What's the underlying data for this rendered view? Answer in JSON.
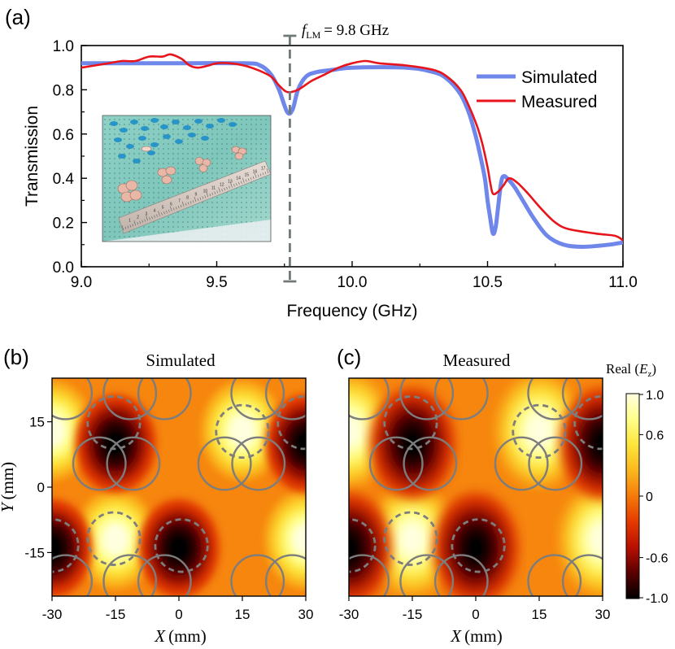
{
  "panel_labels": {
    "a": "(a)",
    "b": "(b)",
    "c": "(c)"
  },
  "annotation": {
    "f_symbol": "f",
    "f_subscript": "LM",
    "f_value": "= 9.8 GHz",
    "frequency_ghz": 9.77
  },
  "colorbar": {
    "title_prefix": "Real (",
    "title_var": "E",
    "title_sub": "z",
    "title_suffix": ")",
    "ticks": [
      "1.0",
      "0.6",
      "0",
      "-0.6",
      "-1.0"
    ],
    "tick_values": [
      1.0,
      0.6,
      0,
      -0.6,
      -1.0
    ],
    "range": [
      -1.0,
      1.0
    ],
    "colormap": [
      "#000000",
      "#5a0000",
      "#b81000",
      "#e63a00",
      "#f57a0a",
      "#fbb81d",
      "#fde53a",
      "#ffff8a",
      "#ffffe0"
    ]
  },
  "inset_photo": {
    "ruler_numbers": [
      "1",
      "2",
      "3",
      "4",
      "5",
      "6",
      "7",
      "8",
      "9",
      "10",
      "11",
      "12",
      "13",
      "14",
      "15",
      "16",
      "17"
    ]
  },
  "chart_data": [
    {
      "type": "line",
      "title": "",
      "xlabel": "Frequency (GHz)",
      "ylabel": "Transmission",
      "xlim": [
        9.0,
        11.0
      ],
      "ylim": [
        0.0,
        1.0
      ],
      "xticks": [
        9.0,
        9.5,
        10.0,
        10.5,
        11.0
      ],
      "xtick_labels": [
        "9.0",
        "9.5",
        "10.0",
        "10.5",
        "11.0"
      ],
      "yticks": [
        0.0,
        0.2,
        0.4,
        0.6,
        0.8,
        1.0
      ],
      "ytick_labels": [
        "0.0",
        "0.2",
        "0.4",
        "0.6",
        "0.8",
        "1.0"
      ],
      "legend_position": "top-right",
      "series": [
        {
          "name": "Simulated",
          "color": "#6f86ea",
          "x": [
            9.0,
            9.3,
            9.6,
            9.66,
            9.7,
            9.73,
            9.76,
            9.78,
            9.8,
            9.83,
            9.87,
            9.93,
            10.0,
            10.2,
            10.3,
            10.35,
            10.4,
            10.43,
            10.45,
            10.47,
            10.49,
            10.5,
            10.51,
            10.52,
            10.53,
            10.54,
            10.55,
            10.56,
            10.58,
            10.6,
            10.63,
            10.67,
            10.72,
            10.78,
            10.85,
            10.95,
            11.0
          ],
          "values": [
            0.92,
            0.92,
            0.92,
            0.91,
            0.87,
            0.8,
            0.7,
            0.71,
            0.8,
            0.86,
            0.88,
            0.89,
            0.9,
            0.9,
            0.88,
            0.85,
            0.78,
            0.7,
            0.62,
            0.52,
            0.4,
            0.3,
            0.22,
            0.15,
            0.18,
            0.28,
            0.38,
            0.41,
            0.39,
            0.36,
            0.3,
            0.22,
            0.14,
            0.1,
            0.09,
            0.1,
            0.11
          ]
        },
        {
          "name": "Measured",
          "color": "#e8141c",
          "x": [
            9.0,
            9.05,
            9.1,
            9.15,
            9.2,
            9.25,
            9.3,
            9.33,
            9.37,
            9.4,
            9.43,
            9.47,
            9.5,
            9.55,
            9.6,
            9.65,
            9.7,
            9.73,
            9.76,
            9.8,
            9.85,
            9.9,
            9.95,
            10.0,
            10.05,
            10.1,
            10.2,
            10.3,
            10.35,
            10.4,
            10.43,
            10.46,
            10.48,
            10.5,
            10.51,
            10.52,
            10.54,
            10.56,
            10.58,
            10.61,
            10.65,
            10.7,
            10.75,
            10.8,
            10.9,
            10.97,
            11.0
          ],
          "values": [
            0.9,
            0.91,
            0.92,
            0.93,
            0.93,
            0.95,
            0.95,
            0.96,
            0.94,
            0.91,
            0.9,
            0.91,
            0.92,
            0.92,
            0.91,
            0.89,
            0.86,
            0.82,
            0.79,
            0.8,
            0.84,
            0.87,
            0.9,
            0.92,
            0.93,
            0.92,
            0.91,
            0.89,
            0.86,
            0.8,
            0.73,
            0.64,
            0.56,
            0.45,
            0.38,
            0.33,
            0.34,
            0.37,
            0.4,
            0.38,
            0.33,
            0.26,
            0.2,
            0.17,
            0.15,
            0.14,
            0.12
          ]
        }
      ]
    },
    {
      "type": "heatmap",
      "title": "Simulated",
      "xlabel_var": "X",
      "xlabel_unit": "(mm)",
      "ylabel_var": "Y",
      "ylabel_unit": "(mm)",
      "xlim": [
        -30,
        30
      ],
      "ylim": [
        -25,
        25
      ],
      "xticks": [
        -30,
        -15,
        0,
        15,
        30
      ],
      "xtick_labels": [
        "-30",
        "-15",
        "0",
        "15",
        "30"
      ],
      "yticks": [
        15,
        0,
        -15
      ],
      "ytick_labels": [
        "15",
        "0",
        "-15"
      ],
      "lobes": [
        {
          "x": -30,
          "y": 13,
          "sign": 1
        },
        {
          "x": 15,
          "y": 13,
          "sign": 1
        },
        {
          "x": -15,
          "y": -12,
          "sign": 1
        },
        {
          "x": 30,
          "y": -12,
          "sign": 1
        },
        {
          "x": -15,
          "y": 10,
          "sign": -1
        },
        {
          "x": 30,
          "y": 10,
          "sign": -1
        },
        {
          "x": 0,
          "y": -14,
          "sign": -1
        },
        {
          "x": -30,
          "y": -14,
          "sign": -1
        }
      ]
    },
    {
      "type": "heatmap",
      "title": "Measured",
      "xlabel_var": "X",
      "xlabel_unit": "(mm)",
      "xlim": [
        -30,
        30
      ],
      "ylim": [
        -25,
        25
      ],
      "xticks": [
        -30,
        -15,
        0,
        15,
        30
      ],
      "xtick_labels": [
        "-30",
        "-15",
        "0",
        "15",
        "30"
      ],
      "lobes": [
        {
          "x": -30,
          "y": 13,
          "sign": 1
        },
        {
          "x": 15,
          "y": 13,
          "sign": 1
        },
        {
          "x": -15,
          "y": -12,
          "sign": 1
        },
        {
          "x": 30,
          "y": -12,
          "sign": 1
        },
        {
          "x": -15,
          "y": 10,
          "sign": -1
        },
        {
          "x": 30,
          "y": 10,
          "sign": -1
        },
        {
          "x": 0,
          "y": -14,
          "sign": -1
        },
        {
          "x": -30,
          "y": -14,
          "sign": -1
        }
      ]
    }
  ]
}
